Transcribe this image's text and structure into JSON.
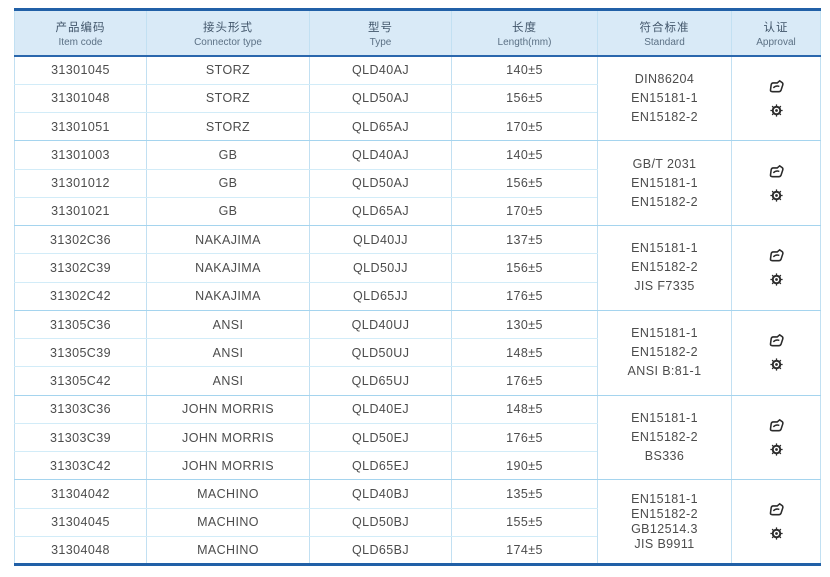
{
  "colors": {
    "header_bg": "#d9eaf7",
    "frame_border": "#2160a7",
    "row_line": "#d2ecf8",
    "group_line": "#a5d4ee",
    "column_line": "#c2e0f2",
    "body_text": "#4c4c4c",
    "header_text": "#42566b",
    "icon_color": "#2b2b2b"
  },
  "icons": {
    "approval_top": "cert-stamp-icon",
    "approval_bottom": "gear-seal-icon"
  },
  "table": {
    "columns": [
      {
        "zh": "产品编码",
        "en": "Item code"
      },
      {
        "zh": "接头形式",
        "en": "Connector type"
      },
      {
        "zh": "型号",
        "en": "Type"
      },
      {
        "zh": "长度",
        "en": "Length(mm)"
      },
      {
        "zh": "符合标准",
        "en": "Standard"
      },
      {
        "zh": "认证",
        "en": "Approval"
      }
    ],
    "groups": [
      {
        "rows": [
          {
            "item_code": "31301045",
            "connector_type": "STORZ",
            "type": "QLD40AJ",
            "length": "140±5"
          },
          {
            "item_code": "31301048",
            "connector_type": "STORZ",
            "type": "QLD50AJ",
            "length": "156±5"
          },
          {
            "item_code": "31301051",
            "connector_type": "STORZ",
            "type": "QLD65AJ",
            "length": "170±5"
          }
        ],
        "standards": [
          "DIN86204",
          "EN15181-1",
          "EN15182-2"
        ]
      },
      {
        "rows": [
          {
            "item_code": "31301003",
            "connector_type": "GB",
            "type": "QLD40AJ",
            "length": "140±5"
          },
          {
            "item_code": "31301012",
            "connector_type": "GB",
            "type": "QLD50AJ",
            "length": "156±5"
          },
          {
            "item_code": "31301021",
            "connector_type": "GB",
            "type": "QLD65AJ",
            "length": "170±5"
          }
        ],
        "standards": [
          "GB/T 2031",
          "EN15181-1",
          "EN15182-2"
        ]
      },
      {
        "rows": [
          {
            "item_code": "31302C36",
            "connector_type": "NAKAJIMA",
            "type": "QLD40JJ",
            "length": "137±5"
          },
          {
            "item_code": "31302C39",
            "connector_type": "NAKAJIMA",
            "type": "QLD50JJ",
            "length": "156±5"
          },
          {
            "item_code": "31302C42",
            "connector_type": "NAKAJIMA",
            "type": "QLD65JJ",
            "length": "176±5"
          }
        ],
        "standards": [
          "EN15181-1",
          "EN15182-2",
          "JIS F7335"
        ]
      },
      {
        "rows": [
          {
            "item_code": "31305C36",
            "connector_type": "ANSI",
            "type": "QLD40UJ",
            "length": "130±5"
          },
          {
            "item_code": "31305C39",
            "connector_type": "ANSI",
            "type": "QLD50UJ",
            "length": "148±5"
          },
          {
            "item_code": "31305C42",
            "connector_type": "ANSI",
            "type": "QLD65UJ",
            "length": "176±5"
          }
        ],
        "standards": [
          "EN15181-1",
          "EN15182-2",
          "ANSI B:81-1"
        ]
      },
      {
        "rows": [
          {
            "item_code": "31303C36",
            "connector_type": "JOHN MORRIS",
            "type": "QLD40EJ",
            "length": "148±5"
          },
          {
            "item_code": "31303C39",
            "connector_type": "JOHN MORRIS",
            "type": "QLD50EJ",
            "length": "176±5"
          },
          {
            "item_code": "31303C42",
            "connector_type": "JOHN MORRIS",
            "type": "QLD65EJ",
            "length": "190±5"
          }
        ],
        "standards": [
          "EN15181-1",
          "EN15182-2",
          "BS336"
        ]
      },
      {
        "rows": [
          {
            "item_code": "31304042",
            "connector_type": "MACHINO",
            "type": "QLD40BJ",
            "length": "135±5"
          },
          {
            "item_code": "31304045",
            "connector_type": "MACHINO",
            "type": "QLD50BJ",
            "length": "155±5"
          },
          {
            "item_code": "31304048",
            "connector_type": "MACHINO",
            "type": "QLD65BJ",
            "length": "174±5"
          }
        ],
        "standards": [
          "EN15181-1",
          "EN15182-2",
          "GB12514.3",
          "JIS B9911"
        ]
      }
    ]
  }
}
